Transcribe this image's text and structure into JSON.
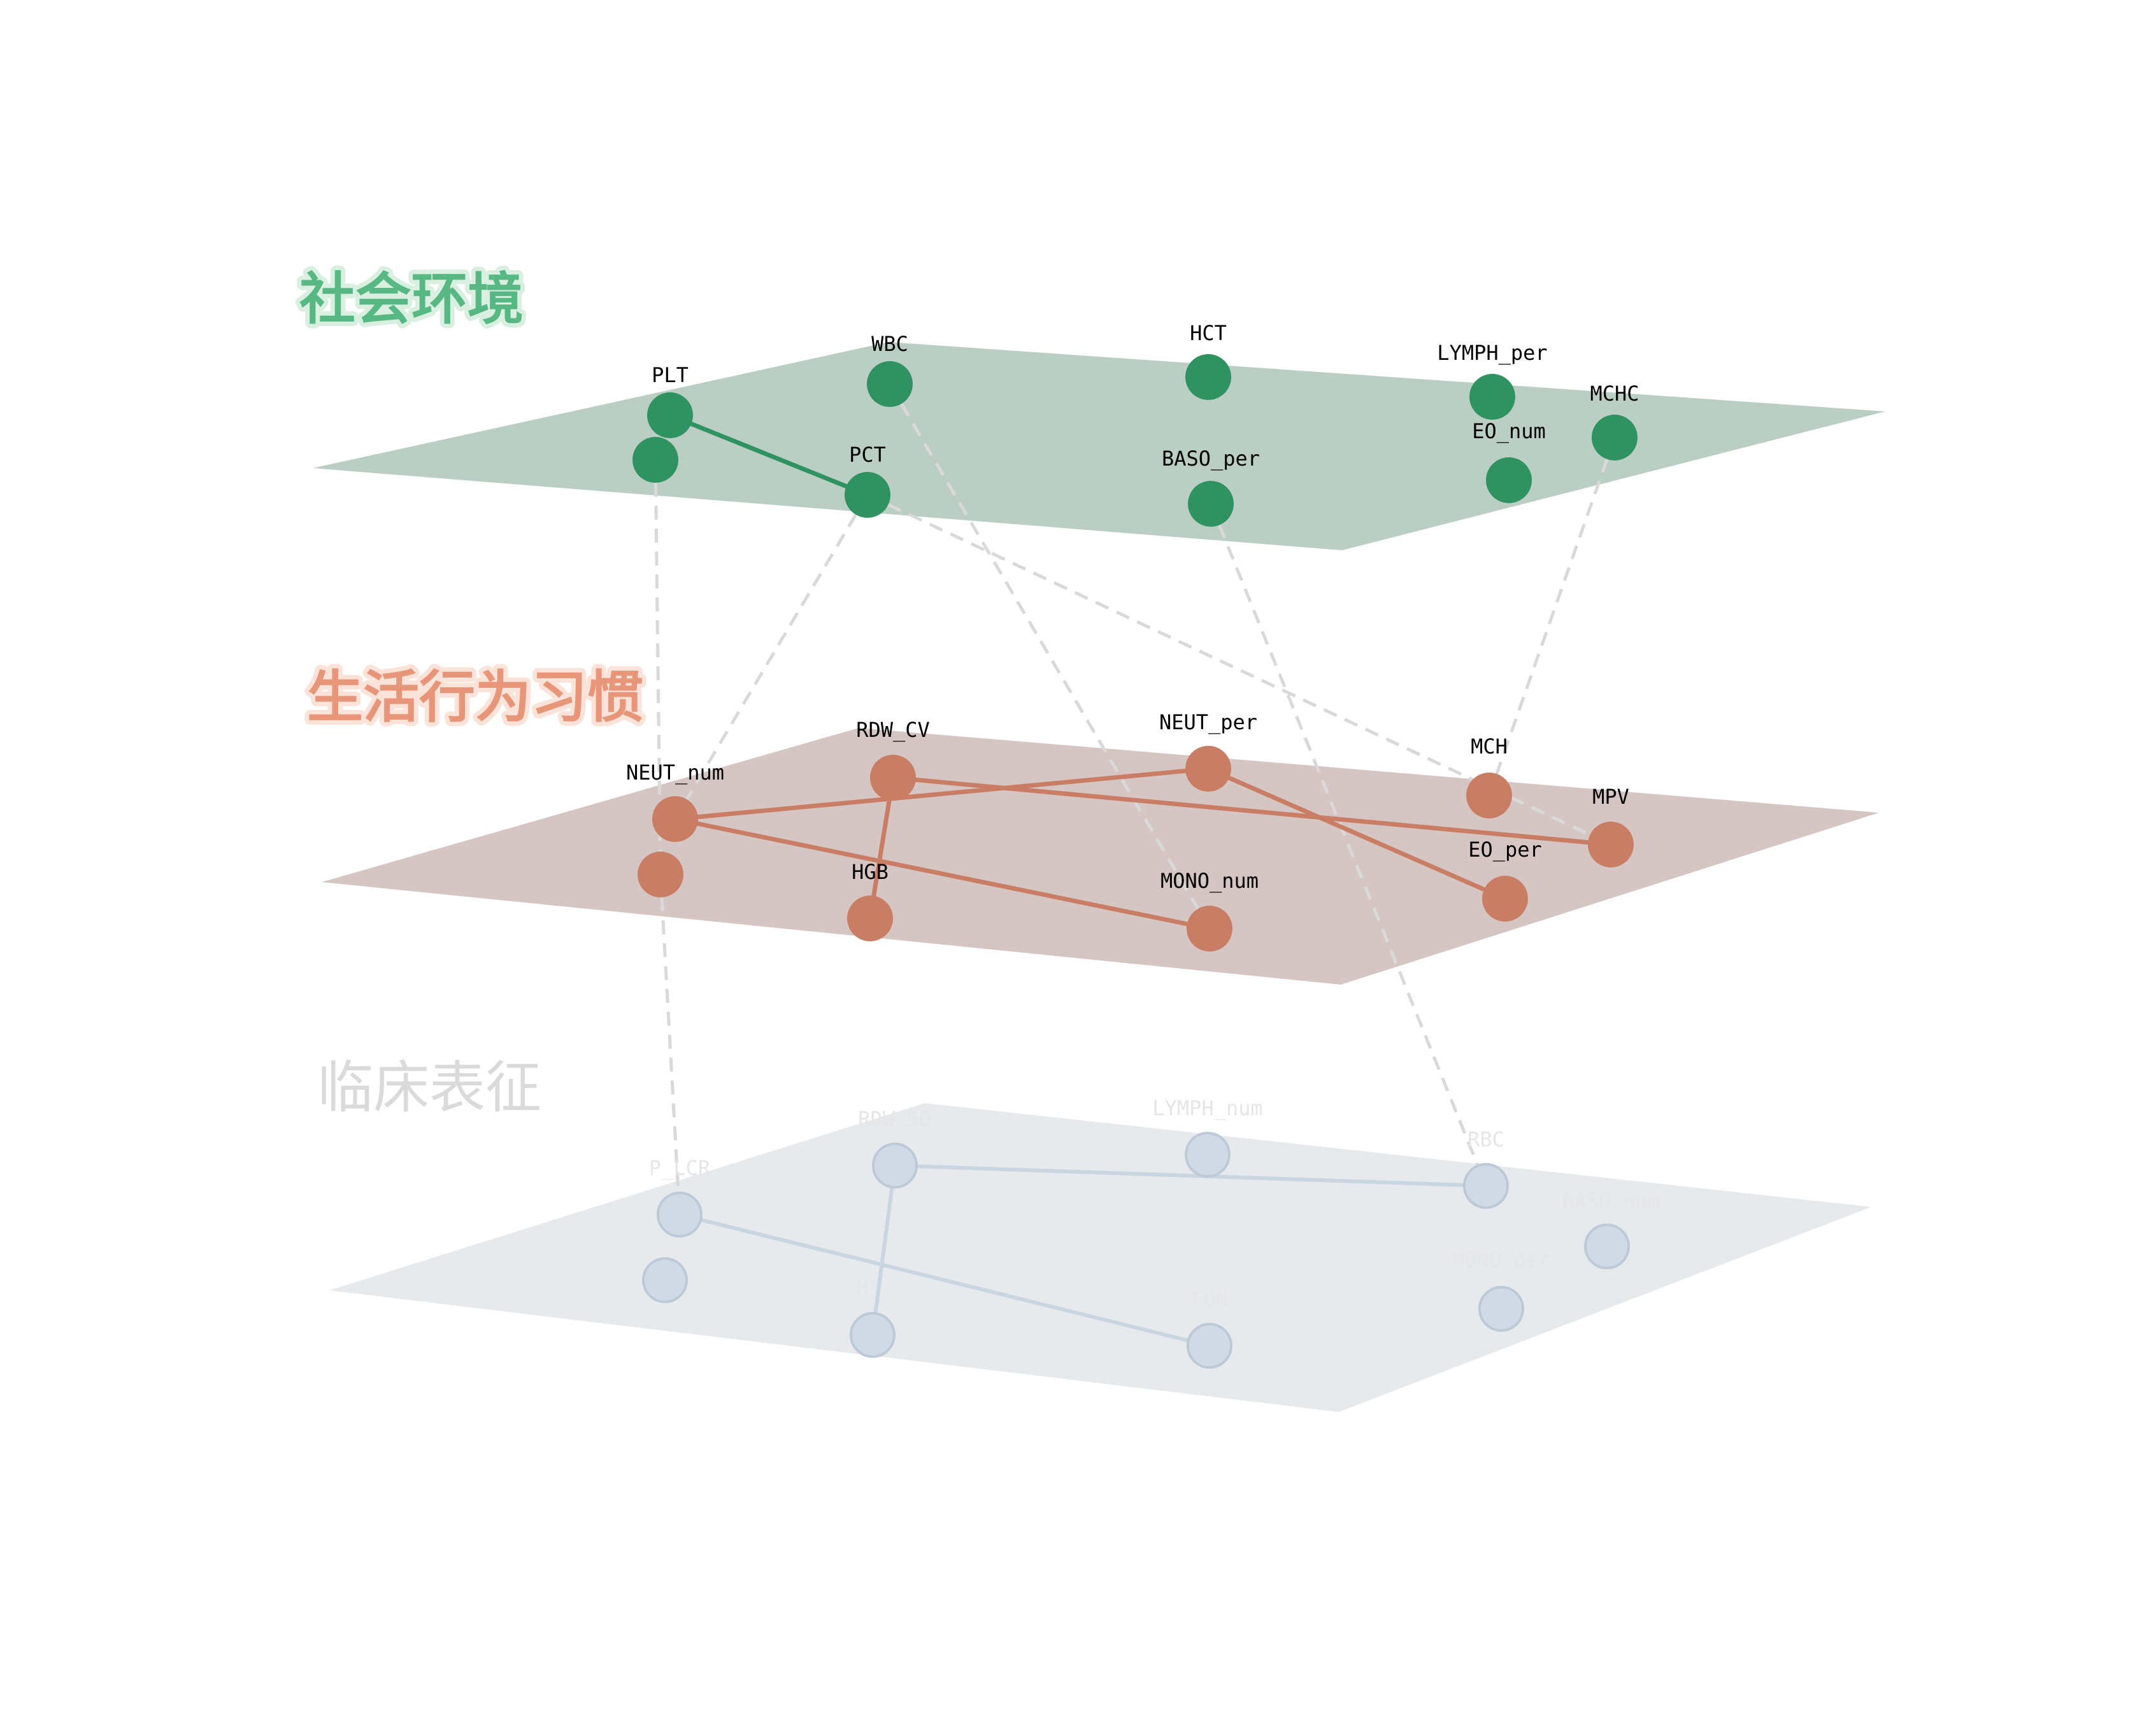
{
  "colors": {
    "social": "#2e9360",
    "social_plane": "#bbcec3",
    "social_title_fill": "#57b884",
    "social_title_stroke": "#d9efe0",
    "lifestyle": "#c97d65",
    "lifestyle_plane": "#d6c6c3",
    "lifestyle_title_fill": "#e8967a",
    "lifestyle_title_stroke": "#fbe3da",
    "clinical_node": "#d0dae4",
    "clinical_node_stroke": "#bccad8",
    "clinical_edge": "#c9d5e1",
    "clinical_plane": "#e7eaec",
    "clinical_title": "#dadada",
    "clinical_label": "#e6e6e6",
    "inter_edge": "#d9d9d9"
  },
  "layers": [
    {
      "id": "social",
      "title": "社会环境",
      "nodes": [
        {
          "id": "PLT",
          "label": "PLT"
        },
        {
          "id": "PLT_B",
          "label": ""
        },
        {
          "id": "WBC",
          "label": "WBC"
        },
        {
          "id": "PCT",
          "label": "PCT"
        },
        {
          "id": "HCT",
          "label": "HCT"
        },
        {
          "id": "BASO_per",
          "label": "BASO_per"
        },
        {
          "id": "LYMPH_per",
          "label": "LYMPH_per"
        },
        {
          "id": "EO_num",
          "label": "EO_num"
        },
        {
          "id": "MCHC",
          "label": "MCHC"
        }
      ],
      "edges": [
        [
          "PLT",
          "PCT"
        ]
      ]
    },
    {
      "id": "lifestyle",
      "title": "生活行为习惯",
      "nodes": [
        {
          "id": "NEUT_num",
          "label": "NEUT_num"
        },
        {
          "id": "NEUT_num_B",
          "label": ""
        },
        {
          "id": "RDW_CV",
          "label": "RDW_CV"
        },
        {
          "id": "HGB",
          "label": "HGB"
        },
        {
          "id": "NEUT_per",
          "label": "NEUT_per"
        },
        {
          "id": "MONO_num",
          "label": "MONO_num"
        },
        {
          "id": "MCH",
          "label": "MCH"
        },
        {
          "id": "EO_per",
          "label": "EO_per"
        },
        {
          "id": "MPV",
          "label": "MPV"
        }
      ],
      "edges": [
        [
          "NEUT_num",
          "NEUT_per"
        ],
        [
          "NEUT_num",
          "MONO_num"
        ],
        [
          "RDW_CV",
          "MPV"
        ],
        [
          "RDW_CV",
          "HGB"
        ],
        [
          "NEUT_per",
          "EO_per"
        ]
      ]
    },
    {
      "id": "clinical",
      "title": "临床表征",
      "nodes": [
        {
          "id": "P_LCR",
          "label": "P_LCR"
        },
        {
          "id": "P_LCR_B",
          "label": ""
        },
        {
          "id": "RDW_SD",
          "label": "RDW_SD"
        },
        {
          "id": "H",
          "label": "H"
        },
        {
          "id": "LYMPH_num",
          "label": "LYMPH_num"
        },
        {
          "id": "FUN",
          "label": "FUN"
        },
        {
          "id": "RBC",
          "label": "RBC"
        },
        {
          "id": "MONO_per",
          "label": "MONO_per"
        },
        {
          "id": "BASO_num",
          "label": "BASO_num"
        }
      ],
      "edges": [
        [
          "P_LCR",
          "FUN"
        ],
        [
          "RDW_SD",
          "RBC"
        ],
        [
          "RDW_SD",
          "H"
        ]
      ]
    }
  ],
  "inter_layer_edges": [
    [
      "social.PLT_B",
      "lifestyle.NEUT_num_B"
    ],
    [
      "social.PCT",
      "lifestyle.NEUT_num"
    ],
    [
      "social.WBC",
      "lifestyle.MONO_num"
    ],
    [
      "social.PCT",
      "lifestyle.MPV"
    ],
    [
      "social.MCHC",
      "lifestyle.MCH"
    ],
    [
      "social.BASO_per",
      "clinical.RBC"
    ],
    [
      "lifestyle.NEUT_num_B",
      "clinical.P_LCR"
    ]
  ]
}
